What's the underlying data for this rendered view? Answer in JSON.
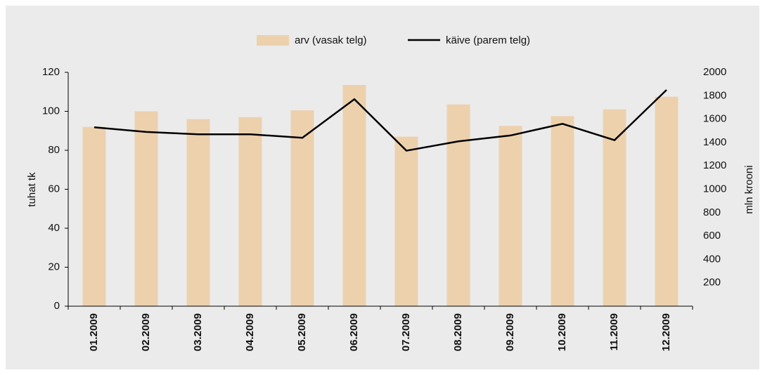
{
  "chart_data": {
    "type": "bar",
    "categories": [
      "01.2009",
      "02.2009",
      "03.2009",
      "04.2009",
      "05.2009",
      "06.2009",
      "07.2009",
      "08.2009",
      "09.2009",
      "10.2009",
      "11.2009",
      "12.2009"
    ],
    "series": [
      {
        "name": "arv (vasak telg)",
        "type": "bar",
        "color": "#edd1ad",
        "values": [
          92,
          100,
          96,
          97,
          100.5,
          113.5,
          87,
          103.5,
          92.5,
          97.5,
          101,
          107.5
        ]
      },
      {
        "name": "käive (parem telg)",
        "type": "line",
        "axis": "y2",
        "color": "#000000",
        "values": [
          1530,
          1490,
          1470,
          1470,
          1440,
          1770,
          1330,
          1410,
          1460,
          1560,
          1420,
          1850
        ]
      }
    ],
    "ylabel": "tuhat tk",
    "y2label": "mln krooni",
    "ylim": [
      0,
      120
    ],
    "yticks": [
      0,
      20,
      40,
      60,
      80,
      100,
      120
    ],
    "y2lim": [
      0,
      2000
    ],
    "y2ticks": [
      200,
      400,
      600,
      800,
      1000,
      1200,
      1400,
      1600,
      1800,
      2000
    ],
    "grid": false,
    "legend": "top"
  }
}
